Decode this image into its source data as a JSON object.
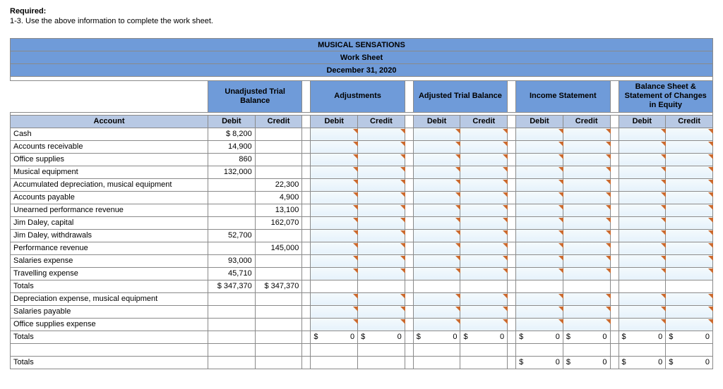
{
  "instructions": {
    "title": "Required:",
    "text": "1-3. Use the above information to complete the work sheet."
  },
  "worksheet": {
    "company": "MUSICAL SENSATIONS",
    "doc_title": "Work Sheet",
    "date": "December 31, 2020",
    "groups": [
      "Unadjusted Trial Balance",
      "Adjustments",
      "Adjusted Trial Balance",
      "Income Statement",
      "Balance Sheet & Statement of Changes in Equity"
    ],
    "col_labels": {
      "account": "Account",
      "debit": "Debit",
      "credit": "Credit"
    },
    "rows": [
      {
        "account": "Cash",
        "utb_d": "$       8,200",
        "utb_c": ""
      },
      {
        "account": "Accounts receivable",
        "utb_d": "14,900",
        "utb_c": ""
      },
      {
        "account": "Office supplies",
        "utb_d": "860",
        "utb_c": ""
      },
      {
        "account": "Musical equipment",
        "utb_d": "132,000",
        "utb_c": ""
      },
      {
        "account": "Accumulated depreciation, musical equipment",
        "utb_d": "",
        "utb_c": "22,300"
      },
      {
        "account": "Accounts payable",
        "utb_d": "",
        "utb_c": "4,900"
      },
      {
        "account": "Unearned performance revenue",
        "utb_d": "",
        "utb_c": "13,100"
      },
      {
        "account": "Jim Daley, capital",
        "utb_d": "",
        "utb_c": "162,070"
      },
      {
        "account": "Jim Daley, withdrawals",
        "utb_d": "52,700",
        "utb_c": ""
      },
      {
        "account": "Performance revenue",
        "utb_d": "",
        "utb_c": "145,000"
      },
      {
        "account": "Salaries expense",
        "utb_d": "93,000",
        "utb_c": ""
      },
      {
        "account": "Travelling expense",
        "utb_d": "45,710",
        "utb_c": ""
      }
    ],
    "subtotal1": {
      "label": "Totals",
      "utb_d": "$   347,370",
      "utb_c": "$   347,370"
    },
    "extra_rows": [
      {
        "account": "Depreciation expense, musical equipment"
      },
      {
        "account": "Salaries payable"
      },
      {
        "account": "Office supplies expense"
      }
    ],
    "subtotal2": {
      "label": "Totals",
      "zero_prefix": "$",
      "zero_val": "0"
    },
    "grand_total": {
      "label": "Totals",
      "zero_prefix": "$",
      "zero_val": "0"
    }
  },
  "colors": {
    "header_bg": "#6f9bd9",
    "subheader_bg": "#b8c9e4",
    "input_corner": "#cc6a2e"
  }
}
